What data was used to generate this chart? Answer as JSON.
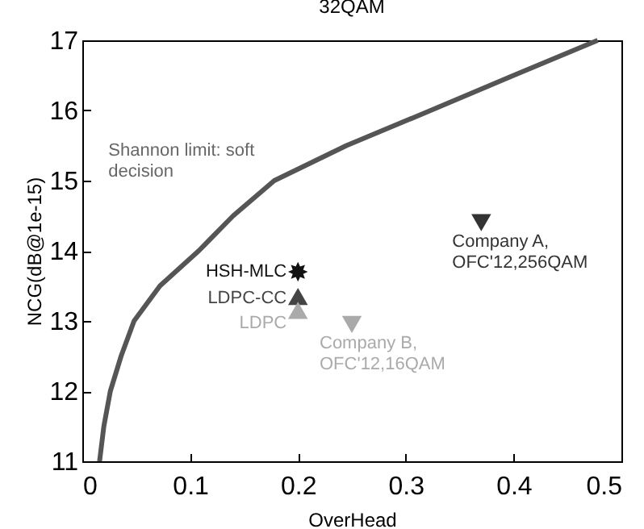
{
  "chart_data": {
    "type": "scatter",
    "title": "32QAM",
    "xlabel": "OverHead",
    "ylabel": "NCG(dB@1e-15)",
    "xlim": [
      0,
      0.5
    ],
    "xticks": [
      0,
      0.1,
      0.2,
      0.3,
      0.4,
      0.5
    ],
    "ylim": [
      11,
      17
    ],
    "yticks": [
      11,
      12,
      13,
      14,
      15,
      16,
      17
    ],
    "grid": false,
    "series": [
      {
        "name": "Shannon limit: soft\ndecision",
        "type": "line",
        "color": "#555555",
        "x": [
          0.016,
          0.02,
          0.026,
          0.036,
          0.048,
          0.072,
          0.108,
          0.14,
          0.178,
          0.245,
          0.323,
          0.4,
          0.478
        ],
        "values": [
          11,
          11.5,
          12,
          12.5,
          13,
          13.5,
          14,
          14.5,
          15,
          15.5,
          16,
          16.5,
          17
        ]
      },
      {
        "name": "HSH-MLC",
        "color": "#111111",
        "marker": "star",
        "x": [
          0.2
        ],
        "values": [
          13.7
        ]
      },
      {
        "name": "LDPC-CC",
        "color": "#444444",
        "marker": "triangle",
        "x": [
          0.2
        ],
        "values": [
          13.35
        ]
      },
      {
        "name": "LDPC",
        "color": "#aaaaaa",
        "marker": "triangle",
        "x": [
          0.2
        ],
        "values": [
          13.15
        ]
      },
      {
        "name": "Company B,\nOFC'12,16QAM",
        "color": "#aaaaaa",
        "marker": "triangle-down",
        "x": [
          0.25
        ],
        "values": [
          12.95
        ]
      },
      {
        "name": "Company A,\nOFC'12,256QAM",
        "color": "#333333",
        "marker": "triangle-down",
        "x": [
          0.37
        ],
        "values": [
          14.4
        ]
      }
    ]
  }
}
